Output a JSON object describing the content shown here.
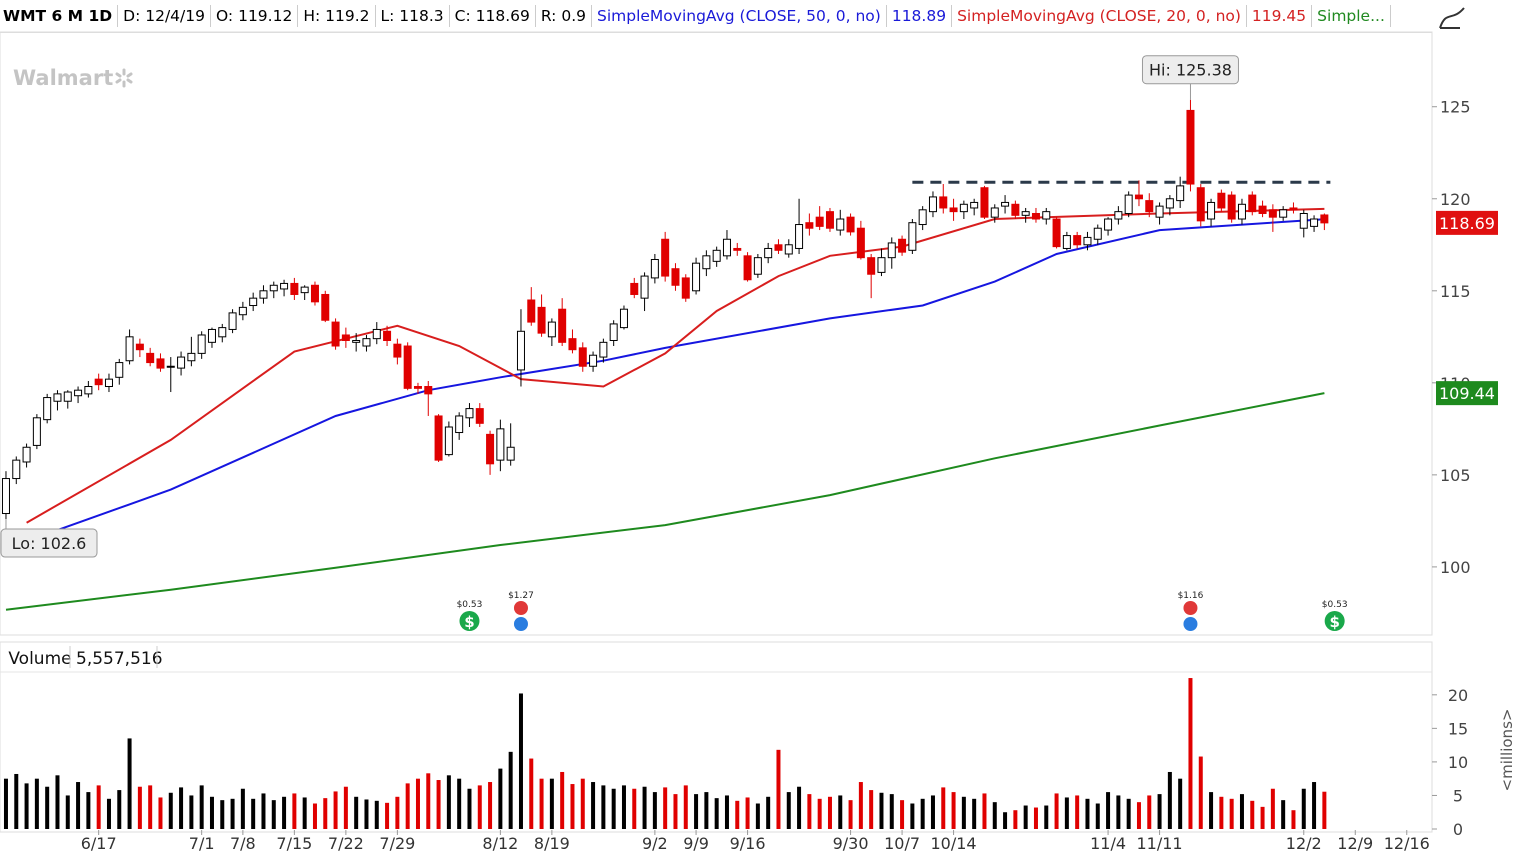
{
  "header": {
    "symbol": "WMT 6 M 1D",
    "date": "D: 12/4/19",
    "open": "O: 119.12",
    "high": "H: 119.2",
    "low": "L: 118.3",
    "close": "C: 118.69",
    "range": "R: 0.9"
  },
  "chart_data": {
    "type": "candlestick",
    "logo": "Walmart",
    "xlim": [
      -0.58,
      138.45
    ],
    "xticks": [
      {
        "value": 9,
        "label": "6/17"
      },
      {
        "value": 19,
        "label": "7/1"
      },
      {
        "value": 23,
        "label": "7/8"
      },
      {
        "value": 28,
        "label": "7/15"
      },
      {
        "value": 33,
        "label": "7/22"
      },
      {
        "value": 38,
        "label": "7/29"
      },
      {
        "value": 48,
        "label": "8/12"
      },
      {
        "value": 53,
        "label": "8/19"
      },
      {
        "value": 63,
        "label": "9/2"
      },
      {
        "value": 67,
        "label": "9/9"
      },
      {
        "value": 72,
        "label": "9/16"
      },
      {
        "value": 82,
        "label": "9/30"
      },
      {
        "value": 87,
        "label": "10/7"
      },
      {
        "value": 92,
        "label": "10/14"
      },
      {
        "value": 107,
        "label": "11/4"
      },
      {
        "value": 112,
        "label": "11/11"
      },
      {
        "value": 126,
        "label": "12/2"
      },
      {
        "value": 131,
        "label": "12/9"
      },
      {
        "value": 136,
        "label": "12/16"
      }
    ],
    "ylim": [
      96.3,
      129.06
    ],
    "yticks": [
      100,
      105,
      110,
      115,
      120,
      125
    ],
    "up_color": "#000000",
    "down_color": "#e00000",
    "ohlc": [
      [
        102.9,
        105.2,
        102.6,
        104.8
      ],
      [
        104.8,
        106.0,
        104.5,
        105.8
      ],
      [
        105.7,
        106.7,
        105.4,
        106.5
      ],
      [
        106.6,
        108.3,
        106.4,
        108.1
      ],
      [
        108.0,
        109.4,
        107.8,
        109.2
      ],
      [
        109.0,
        109.6,
        108.5,
        109.4
      ],
      [
        109.0,
        109.6,
        108.6,
        109.5
      ],
      [
        109.3,
        109.8,
        108.9,
        109.6
      ],
      [
        109.4,
        110.1,
        109.2,
        109.8
      ],
      [
        110.2,
        110.5,
        109.6,
        109.9
      ],
      [
        109.8,
        110.5,
        109.5,
        110.2
      ],
      [
        110.3,
        111.3,
        109.9,
        111.1
      ],
      [
        111.2,
        112.9,
        111.0,
        112.5
      ],
      [
        112.1,
        112.4,
        111.4,
        111.8
      ],
      [
        111.6,
        111.9,
        110.9,
        111.1
      ],
      [
        111.3,
        111.6,
        110.6,
        110.8
      ],
      [
        110.9,
        111.4,
        109.5,
        110.9
      ],
      [
        110.8,
        111.7,
        110.4,
        111.4
      ],
      [
        111.2,
        112.5,
        110.9,
        111.6
      ],
      [
        111.6,
        112.8,
        111.3,
        112.6
      ],
      [
        112.2,
        113.0,
        111.9,
        112.9
      ],
      [
        112.5,
        113.2,
        112.2,
        113.0
      ],
      [
        112.9,
        114.0,
        112.7,
        113.8
      ],
      [
        113.7,
        114.4,
        113.4,
        114.1
      ],
      [
        114.2,
        114.9,
        113.9,
        114.6
      ],
      [
        114.6,
        115.3,
        114.3,
        115.0
      ],
      [
        115.0,
        115.5,
        114.6,
        115.3
      ],
      [
        115.1,
        115.6,
        114.7,
        115.4
      ],
      [
        115.4,
        115.7,
        114.5,
        114.8
      ],
      [
        114.9,
        115.3,
        114.5,
        115.2
      ],
      [
        115.3,
        115.5,
        114.2,
        114.4
      ],
      [
        114.8,
        115.0,
        113.3,
        113.4
      ],
      [
        113.3,
        113.5,
        111.8,
        112.0
      ],
      [
        112.6,
        113.0,
        111.9,
        112.3
      ],
      [
        112.2,
        112.7,
        111.7,
        112.3
      ],
      [
        112.0,
        112.6,
        111.7,
        112.4
      ],
      [
        112.4,
        113.3,
        112.1,
        112.9
      ],
      [
        112.8,
        113.1,
        112.0,
        112.3
      ],
      [
        112.1,
        112.4,
        111.0,
        111.4
      ],
      [
        112.0,
        112.2,
        109.6,
        109.7
      ],
      [
        109.8,
        110.0,
        109.4,
        109.7
      ],
      [
        109.8,
        110.1,
        108.2,
        109.4
      ],
      [
        108.2,
        108.3,
        105.7,
        105.8
      ],
      [
        106.1,
        107.9,
        106.0,
        107.6
      ],
      [
        107.3,
        108.4,
        106.9,
        108.2
      ],
      [
        108.1,
        108.9,
        107.6,
        108.6
      ],
      [
        108.6,
        108.9,
        107.6,
        107.8
      ],
      [
        107.2,
        107.4,
        105.0,
        105.6
      ],
      [
        105.8,
        108.0,
        105.2,
        107.5
      ],
      [
        105.8,
        107.8,
        105.5,
        106.5
      ],
      [
        110.7,
        114.0,
        109.8,
        112.8
      ],
      [
        114.5,
        115.2,
        113.1,
        113.3
      ],
      [
        114.1,
        114.8,
        112.5,
        112.7
      ],
      [
        112.5,
        113.5,
        112.0,
        113.3
      ],
      [
        114.0,
        114.6,
        112.0,
        112.2
      ],
      [
        112.4,
        112.9,
        111.6,
        111.8
      ],
      [
        111.9,
        112.2,
        110.6,
        110.9
      ],
      [
        110.9,
        111.7,
        110.6,
        111.5
      ],
      [
        111.4,
        112.4,
        111.1,
        112.2
      ],
      [
        112.3,
        113.4,
        112.0,
        113.2
      ],
      [
        113.0,
        114.2,
        112.9,
        114.0
      ],
      [
        115.4,
        115.7,
        114.6,
        114.8
      ],
      [
        114.6,
        116.0,
        113.9,
        115.8
      ],
      [
        115.7,
        117.0,
        115.4,
        116.7
      ],
      [
        117.8,
        118.2,
        115.5,
        115.8
      ],
      [
        116.2,
        116.5,
        115.0,
        115.3
      ],
      [
        115.7,
        115.9,
        114.4,
        114.6
      ],
      [
        115.0,
        116.8,
        114.8,
        116.5
      ],
      [
        116.2,
        117.2,
        115.8,
        116.9
      ],
      [
        116.6,
        117.4,
        116.3,
        117.2
      ],
      [
        116.9,
        118.3,
        116.7,
        117.8
      ],
      [
        117.3,
        117.6,
        116.9,
        117.2
      ],
      [
        116.9,
        117.1,
        115.5,
        115.6
      ],
      [
        115.9,
        117.0,
        115.7,
        116.8
      ],
      [
        116.8,
        117.6,
        116.5,
        117.3
      ],
      [
        117.5,
        117.8,
        117.0,
        117.2
      ],
      [
        117.0,
        117.8,
        116.8,
        117.5
      ],
      [
        117.3,
        120.0,
        117.0,
        118.6
      ],
      [
        118.7,
        119.2,
        118.0,
        118.4
      ],
      [
        119.0,
        119.6,
        118.3,
        118.5
      ],
      [
        119.3,
        119.5,
        118.2,
        118.4
      ],
      [
        118.3,
        119.4,
        118.0,
        118.9
      ],
      [
        119.0,
        119.2,
        118.0,
        118.2
      ],
      [
        118.4,
        118.8,
        116.7,
        116.8
      ],
      [
        116.8,
        117.0,
        114.6,
        115.9
      ],
      [
        116.0,
        117.3,
        115.8,
        116.8
      ],
      [
        116.8,
        117.9,
        116.2,
        117.6
      ],
      [
        117.8,
        118.0,
        116.9,
        117.1
      ],
      [
        117.2,
        118.9,
        117.0,
        118.7
      ],
      [
        118.6,
        119.6,
        118.3,
        119.4
      ],
      [
        119.3,
        120.4,
        119.0,
        120.1
      ],
      [
        120.1,
        120.8,
        119.2,
        119.5
      ],
      [
        119.5,
        120.0,
        118.8,
        119.3
      ],
      [
        119.3,
        119.9,
        118.9,
        119.7
      ],
      [
        119.5,
        120.0,
        119.1,
        119.8
      ],
      [
        120.6,
        120.7,
        118.9,
        119.0
      ],
      [
        119.0,
        119.7,
        118.7,
        119.5
      ],
      [
        119.6,
        120.2,
        119.2,
        119.8
      ],
      [
        119.7,
        119.9,
        118.9,
        119.1
      ],
      [
        119.1,
        119.5,
        118.7,
        119.3
      ],
      [
        119.2,
        119.5,
        118.7,
        118.9
      ],
      [
        118.9,
        119.5,
        118.6,
        119.3
      ],
      [
        118.9,
        119.0,
        117.3,
        117.4
      ],
      [
        117.3,
        118.2,
        117.2,
        118.0
      ],
      [
        118.0,
        118.2,
        117.3,
        117.5
      ],
      [
        117.5,
        118.2,
        117.2,
        117.9
      ],
      [
        117.8,
        118.6,
        117.5,
        118.4
      ],
      [
        118.3,
        119.0,
        118.0,
        118.9
      ],
      [
        118.9,
        119.6,
        118.6,
        119.3
      ],
      [
        119.2,
        120.4,
        119.0,
        120.2
      ],
      [
        120.2,
        121.0,
        119.6,
        120.0
      ],
      [
        119.9,
        120.3,
        119.0,
        119.3
      ],
      [
        119.0,
        119.8,
        118.6,
        119.6
      ],
      [
        119.5,
        120.2,
        119.1,
        120.0
      ],
      [
        119.9,
        121.2,
        119.5,
        120.7
      ],
      [
        124.8,
        125.38,
        120.4,
        120.8
      ],
      [
        120.6,
        120.8,
        118.5,
        118.8
      ],
      [
        118.9,
        120.0,
        118.5,
        119.8
      ],
      [
        120.3,
        120.5,
        119.3,
        119.5
      ],
      [
        120.2,
        120.4,
        118.7,
        118.9
      ],
      [
        118.9,
        120.0,
        118.6,
        119.7
      ],
      [
        120.2,
        120.4,
        119.1,
        119.3
      ],
      [
        119.6,
        119.9,
        119.0,
        119.2
      ],
      [
        119.4,
        119.7,
        118.2,
        119.0
      ],
      [
        119.0,
        119.6,
        118.8,
        119.4
      ],
      [
        119.5,
        119.8,
        119.2,
        119.4
      ],
      [
        118.4,
        119.4,
        117.9,
        119.2
      ],
      [
        118.5,
        119.1,
        118.2,
        118.9
      ],
      [
        119.12,
        119.2,
        118.3,
        118.69
      ]
    ],
    "hi_label": "Hi: 125.38",
    "lo_label": "Lo: 102.6",
    "resistance": {
      "value": 120.9,
      "from": 88,
      "to": 128,
      "color": "#2b3a4a"
    },
    "series": [
      {
        "name": "SimpleMovingAvg (CLOSE, 50, 0, no)",
        "last": "118.89",
        "color": "#1616e0",
        "x": [
          5,
          16,
          32,
          41,
          48,
          58,
          64,
          80,
          89,
          96,
          102,
          112,
          128
        ],
        "values": [
          102.0,
          104.2,
          108.2,
          109.6,
          110.3,
          111.2,
          111.9,
          113.5,
          114.2,
          115.5,
          117.0,
          118.3,
          118.89
        ]
      },
      {
        "name": "SimpleMovingAvg (CLOSE, 20, 0, no)",
        "last": "119.45",
        "color": "#d81e1e",
        "x": [
          2,
          16,
          28,
          38,
          44,
          50,
          58,
          64,
          69,
          75,
          80,
          87,
          96,
          112,
          128
        ],
        "values": [
          102.4,
          106.9,
          111.7,
          113.1,
          112.0,
          110.2,
          109.8,
          111.6,
          113.9,
          115.8,
          116.9,
          117.4,
          118.9,
          119.2,
          119.45
        ]
      },
      {
        "name": "Simple...",
        "color": "#1e8a1e",
        "x": [
          0,
          16,
          32,
          48,
          64,
          80,
          96,
          112,
          128
        ],
        "values": [
          97.67,
          98.76,
          99.95,
          101.19,
          102.27,
          103.9,
          105.9,
          107.68,
          109.44
        ]
      }
    ],
    "close_tag_color": "#e01010",
    "events": [
      {
        "x": 45,
        "label": "$0.53",
        "icon": "dividend"
      },
      {
        "x": 50,
        "label": "$1.27",
        "icon": "earnings"
      },
      {
        "x": 115,
        "label": "$1.16",
        "icon": "earnings"
      },
      {
        "x": 129,
        "label": "$0.53",
        "icon": "dividend"
      }
    ],
    "volume_title": "Volume",
    "volume_readout": "5,557,516",
    "volume_unit": "<millions>",
    "vlim": [
      0,
      23.4
    ],
    "vticks": [
      0,
      5,
      10,
      15,
      20
    ],
    "volume": [
      7.5,
      8.2,
      6.8,
      7.5,
      6.3,
      8,
      5,
      7,
      5.5,
      6.5,
      4.5,
      5.8,
      13.5,
      6.3,
      6.5,
      4.7,
      5.4,
      6.2,
      5,
      6.5,
      4.8,
      4.3,
      4.5,
      6,
      4.5,
      5.3,
      4.3,
      4.8,
      5.3,
      4.7,
      3.8,
      4.6,
      5.6,
      6.3,
      4.8,
      4.4,
      4.2,
      3.9,
      4.8,
      6.8,
      7.5,
      8.3,
      7.3,
      8,
      7.5,
      6,
      6.5,
      7,
      9,
      11.5,
      20.2,
      10.5,
      7.5,
      7.5,
      8.5,
      6.7,
      7.5,
      7,
      6.5,
      6,
      6.5,
      6,
      6.3,
      5.5,
      6.2,
      5.2,
      6.5,
      5.2,
      5.5,
      4.6,
      5,
      4.2,
      4.7,
      3.8,
      4.8,
      11.8,
      5.5,
      6.3,
      5.2,
      4.5,
      4.8,
      5,
      4.3,
      7,
      5.8,
      5.4,
      5.2,
      4.3,
      3.8,
      4.5,
      5,
      6.2,
      5.5,
      4.8,
      4.5,
      5.3,
      4,
      2.5,
      2.8,
      3.5,
      3.2,
      3.5,
      5.3,
      4.7,
      5,
      4.5,
      3.8,
      5.5,
      5,
      4.5,
      4,
      5,
      5.2,
      8.5,
      7.5,
      22.5,
      10.8,
      5.5,
      4.8,
      4.5,
      5.2,
      4.2,
      3.3,
      6,
      4.3,
      2.8,
      6,
      7,
      5.557516
    ]
  }
}
